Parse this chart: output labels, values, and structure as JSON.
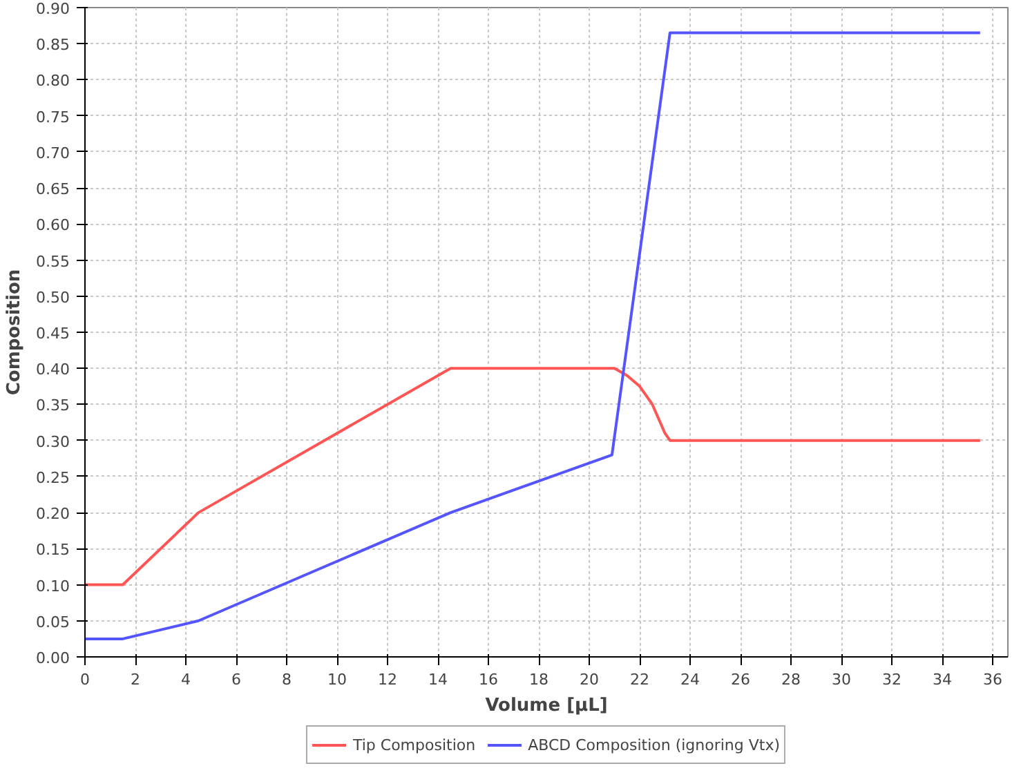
{
  "chart_data": {
    "type": "line",
    "xlabel": "Volume [µL]",
    "ylabel": "Composition",
    "xlim": [
      0,
      36.6
    ],
    "ylim": [
      0,
      0.9
    ],
    "xticks": [
      0,
      2,
      4,
      6,
      8,
      10,
      12,
      14,
      16,
      18,
      20,
      22,
      24,
      26,
      28,
      30,
      32,
      34,
      36
    ],
    "yticks": [
      {
        "value": 0,
        "label": "0.00"
      },
      {
        "value": 0.05,
        "label": "0.05"
      },
      {
        "value": 0.1,
        "label": "0.10"
      },
      {
        "value": 0.15,
        "label": "0.15"
      },
      {
        "value": 0.2,
        "label": "0.20"
      },
      {
        "value": 0.25,
        "label": "0.25"
      },
      {
        "value": 0.3,
        "label": "0.30"
      },
      {
        "value": 0.35,
        "label": "0.35"
      },
      {
        "value": 0.4,
        "label": "0.40"
      },
      {
        "value": 0.45,
        "label": "0.45"
      },
      {
        "value": 0.5,
        "label": "0.50"
      },
      {
        "value": 0.55,
        "label": "0.55"
      },
      {
        "value": 0.6,
        "label": "0.60"
      },
      {
        "value": 0.65,
        "label": "0.65"
      },
      {
        "value": 0.7,
        "label": "0.70"
      },
      {
        "value": 0.75,
        "label": "0.75"
      },
      {
        "value": 0.8,
        "label": "0.80"
      },
      {
        "value": 0.85,
        "label": "0.85"
      },
      {
        "value": 0.9,
        "label": "0.90"
      }
    ],
    "grid": true,
    "legend": "bottom",
    "line_style": "solid",
    "series": [
      {
        "name": "Tip Composition",
        "color": "#ff5555",
        "x": [
          0,
          1.5,
          4.5,
          14.5,
          21,
          21.5,
          22,
          22.5,
          23,
          23.2,
          35.5
        ],
        "values": [
          0.1,
          0.1,
          0.2,
          0.4,
          0.4,
          0.39,
          0.375,
          0.35,
          0.31,
          0.3,
          0.3
        ]
      },
      {
        "name": "ABCD Composition (ignoring Vtx)",
        "color": "#5555ff",
        "x": [
          0,
          1.5,
          4.5,
          14.5,
          20.9,
          23.2,
          35.5
        ],
        "values": [
          0.025,
          0.025,
          0.05,
          0.2,
          0.28,
          0.865,
          0.865
        ]
      }
    ]
  }
}
